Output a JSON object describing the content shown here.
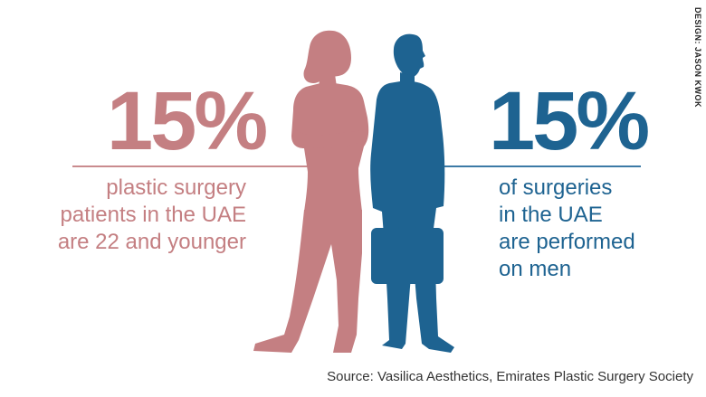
{
  "left_stat": {
    "value": "15%",
    "lines": [
      "plastic surgery",
      "patients in the UAE",
      "are 22 and younger"
    ],
    "color": "#c47f82"
  },
  "right_stat": {
    "value": "15%",
    "lines": [
      "of surgeries",
      "in the UAE",
      "are performed",
      "on men"
    ],
    "color": "#1e6391"
  },
  "figures": {
    "woman": "woman-silhouette",
    "man": "man-silhouette-with-briefcase"
  },
  "credit": "DESIGN: JASON KWOK",
  "source": "Source: Vasilica Aesthetics, Emirates Plastic Surgery Society"
}
